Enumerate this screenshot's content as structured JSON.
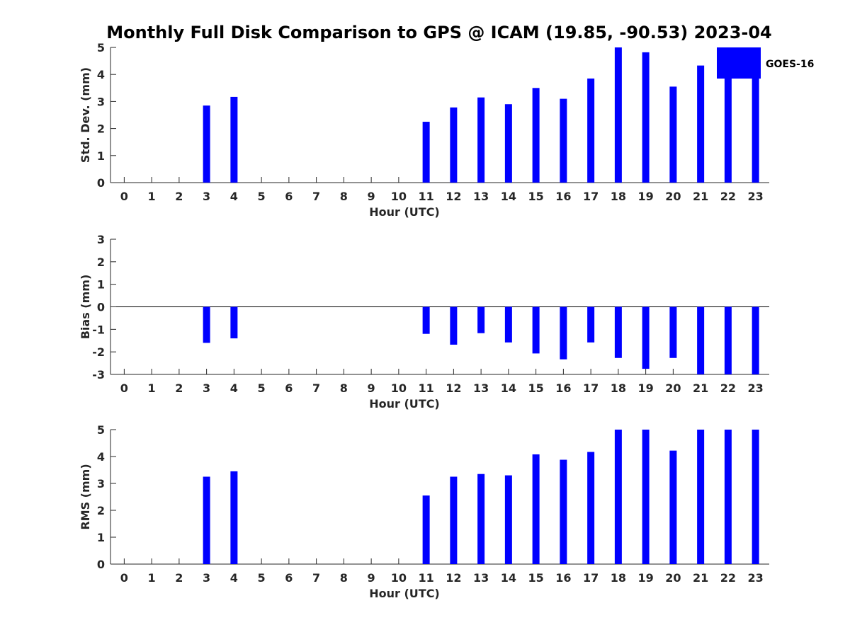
{
  "title": "Monthly Full Disk Comparison to GPS @ ICAM (19.85, -90.53) 2023-04",
  "colors": {
    "bar": "#0000ff",
    "axis": "#262626",
    "zero_line": "#000000"
  },
  "legend": {
    "label": "GOES-16",
    "placement": "top-right"
  },
  "chart_data": [
    {
      "type": "bar",
      "xlabel": "Hour (UTC)",
      "ylabel": "Std. Dev. (mm)",
      "ylim": [
        0,
        5
      ],
      "yticks": [
        0,
        1,
        2,
        3,
        4,
        5
      ],
      "categories": [
        "0",
        "1",
        "2",
        "3",
        "4",
        "5",
        "6",
        "7",
        "8",
        "9",
        "10",
        "11",
        "12",
        "13",
        "14",
        "15",
        "16",
        "17",
        "18",
        "19",
        "20",
        "21",
        "22",
        "23"
      ],
      "series": [
        {
          "name": "GOES-16",
          "values": [
            null,
            null,
            null,
            2.85,
            3.17,
            null,
            null,
            null,
            null,
            null,
            null,
            2.25,
            2.78,
            3.15,
            2.9,
            3.5,
            3.1,
            3.85,
            5.0,
            4.82,
            3.55,
            4.33,
            4.75,
            4.8
          ]
        }
      ],
      "show_zero_line": false
    },
    {
      "type": "bar",
      "xlabel": "Hour (UTC)",
      "ylabel": "Bias (mm)",
      "ylim": [
        -3,
        3
      ],
      "yticks": [
        -3,
        -2,
        -1,
        0,
        1,
        2,
        3
      ],
      "categories": [
        "0",
        "1",
        "2",
        "3",
        "4",
        "5",
        "6",
        "7",
        "8",
        "9",
        "10",
        "11",
        "12",
        "13",
        "14",
        "15",
        "16",
        "17",
        "18",
        "19",
        "20",
        "21",
        "22",
        "23"
      ],
      "series": [
        {
          "name": "GOES-16",
          "values": [
            null,
            null,
            null,
            -1.6,
            -1.4,
            null,
            null,
            null,
            null,
            null,
            null,
            -1.2,
            -1.68,
            -1.17,
            -1.58,
            -2.07,
            -2.33,
            -1.58,
            -2.27,
            -2.75,
            -2.27,
            -3.0,
            -3.0,
            -3.0
          ]
        }
      ],
      "show_zero_line": true
    },
    {
      "type": "bar",
      "xlabel": "Hour (UTC)",
      "ylabel": "RMS (mm)",
      "ylim": [
        0,
        5
      ],
      "yticks": [
        0,
        1,
        2,
        3,
        4,
        5
      ],
      "categories": [
        "0",
        "1",
        "2",
        "3",
        "4",
        "5",
        "6",
        "7",
        "8",
        "9",
        "10",
        "11",
        "12",
        "13",
        "14",
        "15",
        "16",
        "17",
        "18",
        "19",
        "20",
        "21",
        "22",
        "23"
      ],
      "series": [
        {
          "name": "GOES-16",
          "values": [
            null,
            null,
            null,
            3.25,
            3.45,
            null,
            null,
            null,
            null,
            null,
            null,
            2.55,
            3.25,
            3.35,
            3.3,
            4.08,
            3.88,
            4.17,
            5.0,
            5.0,
            4.22,
            5.0,
            5.0,
            5.0
          ]
        }
      ],
      "show_zero_line": false
    }
  ]
}
